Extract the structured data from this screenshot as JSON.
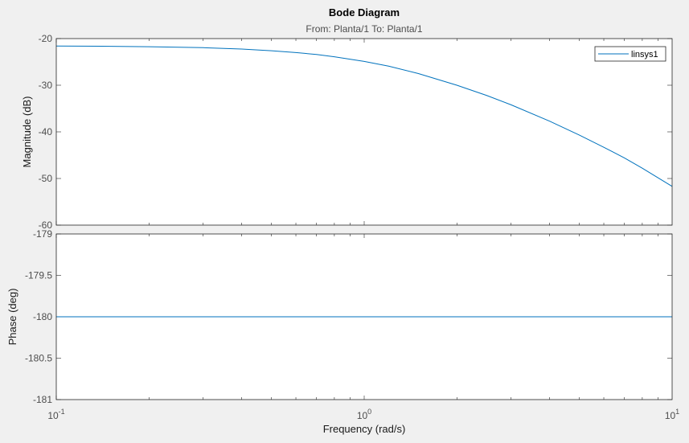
{
  "chart_data": {
    "type": "line",
    "title": "Bode Diagram",
    "subtitle": "From: Planta/1  To: Planta/1",
    "xlabel": "Frequency  (rad/s)",
    "xscale": "log",
    "xlim": [
      0.1,
      10
    ],
    "xticks": [
      {
        "value": 0.1,
        "base": "10",
        "exp": "-1"
      },
      {
        "value": 1,
        "base": "10",
        "exp": "0"
      },
      {
        "value": 10,
        "base": "10",
        "exp": "1"
      }
    ],
    "legend": {
      "position": "top-right",
      "entries": [
        "linsys1"
      ]
    },
    "series_color": "#0072bd",
    "magnitude": {
      "ylabel": "Magnitude (dB)",
      "ylim": [
        -60,
        -20
      ],
      "yticks": [
        "-20",
        "-30",
        "-40",
        "-50",
        "-60"
      ],
      "series": [
        {
          "name": "linsys1",
          "x": [
            0.1,
            0.15,
            0.2,
            0.3,
            0.4,
            0.5,
            0.6,
            0.7,
            0.8,
            1.0,
            1.2,
            1.5,
            2.0,
            2.5,
            3.0,
            4.0,
            5.0,
            6.0,
            7.0,
            8.0,
            10.0
          ],
          "y": [
            -21.6,
            -21.65,
            -21.75,
            -21.95,
            -22.25,
            -22.6,
            -23.0,
            -23.4,
            -23.9,
            -24.9,
            -25.9,
            -27.5,
            -30.0,
            -32.2,
            -34.2,
            -37.7,
            -40.7,
            -43.3,
            -45.6,
            -47.8,
            -51.7
          ]
        }
      ]
    },
    "phase": {
      "ylabel": "Phase (deg)",
      "ylim": [
        -181,
        -179
      ],
      "yticks": [
        "-179",
        "-179.5",
        "-180",
        "-180.5",
        "-181"
      ],
      "series": [
        {
          "name": "linsys1",
          "x": [
            0.1,
            10
          ],
          "y": [
            -180,
            -180
          ]
        }
      ]
    }
  }
}
